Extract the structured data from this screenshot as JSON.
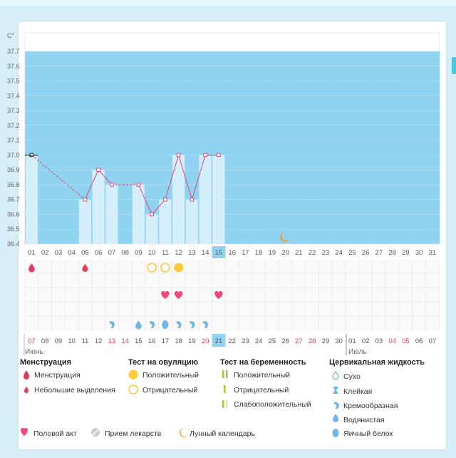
{
  "chart_data": {
    "type": "bar",
    "unit_label": "C°",
    "ylim": [
      36.4,
      37.7
    ],
    "y_ticks": [
      "37.7",
      "37.6",
      "37.5",
      "37.4",
      "37.3",
      "37.2",
      "37.1",
      "37.0",
      "36.9",
      "36.8",
      "36.7",
      "36.6",
      "36.5",
      "36.4"
    ],
    "days": [
      "01",
      "02",
      "03",
      "04",
      "05",
      "06",
      "07",
      "08",
      "09",
      "10",
      "11",
      "12",
      "13",
      "14",
      "15",
      "16",
      "17",
      "18",
      "19",
      "20",
      "21",
      "22",
      "23",
      "24",
      "25",
      "26",
      "27",
      "28",
      "29",
      "30",
      "31"
    ],
    "highlight_day": "15",
    "temperatures": [
      37.0,
      null,
      null,
      null,
      36.7,
      36.9,
      36.8,
      null,
      36.8,
      36.6,
      36.7,
      37.0,
      36.7,
      37.0,
      37.0,
      null,
      null,
      null,
      null,
      null,
      null,
      null,
      null,
      null,
      null,
      null,
      null,
      null,
      null,
      null,
      null
    ],
    "moon_day": "20",
    "menstruation_days": [
      "01"
    ],
    "light_discharge_days": [
      "05"
    ],
    "ovulation_negative_days": [
      "10",
      "11"
    ],
    "ovulation_positive_days": [
      "12"
    ],
    "intercourse_days": [
      "11",
      "12",
      "15"
    ],
    "cervical_fluid": [
      {
        "day": "07",
        "kind": "creamy"
      },
      {
        "day": "09",
        "kind": "watery"
      },
      {
        "day": "10",
        "kind": "creamy"
      },
      {
        "day": "11",
        "kind": "egg_white"
      },
      {
        "day": "12",
        "kind": "creamy"
      },
      {
        "day": "13",
        "kind": "creamy"
      },
      {
        "day": "14",
        "kind": "creamy"
      }
    ],
    "cycle_days": [
      "07",
      "08",
      "09",
      "10",
      "11",
      "12",
      "13",
      "14",
      "15",
      "16",
      "17",
      "18",
      "19",
      "20",
      "21",
      "22",
      "23",
      "24",
      "25",
      "26",
      "27",
      "28",
      "29",
      "30",
      "01",
      "02",
      "03",
      "04",
      "05",
      "06",
      "07"
    ],
    "cycle_red_days": [
      0,
      6,
      7,
      13,
      20,
      21,
      27,
      28
    ],
    "cycle_highlight_index": 14,
    "month_june": "Июнь",
    "month_july": "Июль"
  },
  "legend": {
    "menstruation": {
      "title": "Менструация",
      "items": [
        "Менструация",
        "Небольшие выделения"
      ]
    },
    "ovulation_test": {
      "title": "Тест на овуляцию",
      "items": [
        "Положительный",
        "Отрицательный"
      ]
    },
    "pregnancy_test": {
      "title": "Тест на беременность",
      "items": [
        "Положительный",
        "Отрицательный",
        "Слабоположительный"
      ]
    },
    "cervical_fluid": {
      "title": "Цервикальная жидкость",
      "items": [
        "Сухо",
        "Клейкая",
        "Кремообразная",
        "Водянистая",
        "Яичный белок"
      ]
    },
    "bottom": [
      "Половой акт",
      "Прием лекарств",
      "Лунный календарь"
    ]
  },
  "colors": {
    "bg_blue": "#8fd3f0",
    "bar": "#d4eefb",
    "line": "#e0457a",
    "red": "#e33b5a",
    "gold": "#ffcc33",
    "pink": "#f0457f",
    "drop": "#72b6e4",
    "green": "#9ccc3a",
    "moon": "#f2a23c",
    "highlight": "#8fd3f0"
  }
}
